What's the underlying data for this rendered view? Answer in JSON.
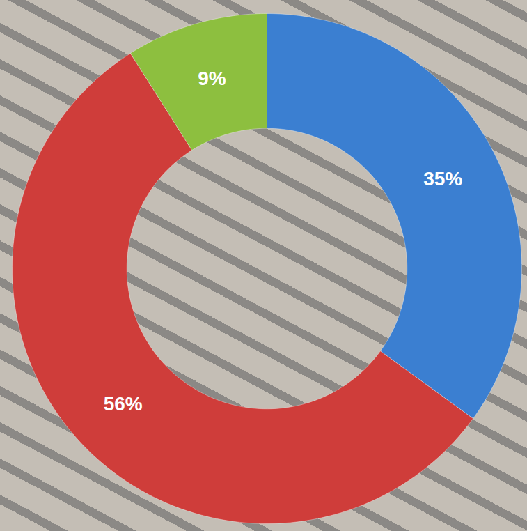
{
  "chart_data": {
    "type": "donut",
    "values": [
      35,
      56,
      9
    ],
    "value_labels": [
      "35%",
      "56%",
      "9%"
    ],
    "colors": [
      "#3b7fd1",
      "#cf3d3a",
      "#8dbf3f"
    ],
    "data_labels": true
  }
}
